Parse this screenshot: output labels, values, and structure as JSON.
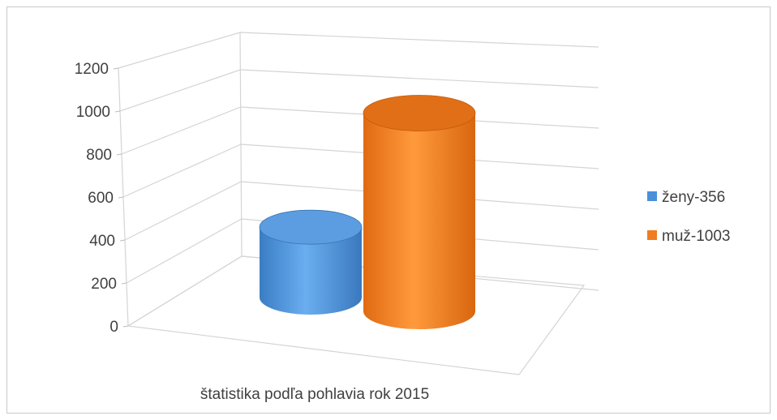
{
  "chart_data": {
    "type": "bar",
    "style": "3d-cylinder",
    "title": "",
    "categories": [
      "štatistika podľa pohlavia rok 2015"
    ],
    "series": [
      {
        "name": "ženy-356",
        "values": [
          356
        ],
        "color": "#4a90d9"
      },
      {
        "name": "muž-1003",
        "values": [
          1003
        ],
        "color": "#f07d22"
      }
    ],
    "y_ticks": [
      "0",
      "200",
      "400",
      "600",
      "800",
      "1000",
      "1200"
    ],
    "ylim": [
      0,
      1200
    ],
    "grid": true,
    "legend_position": "right"
  }
}
